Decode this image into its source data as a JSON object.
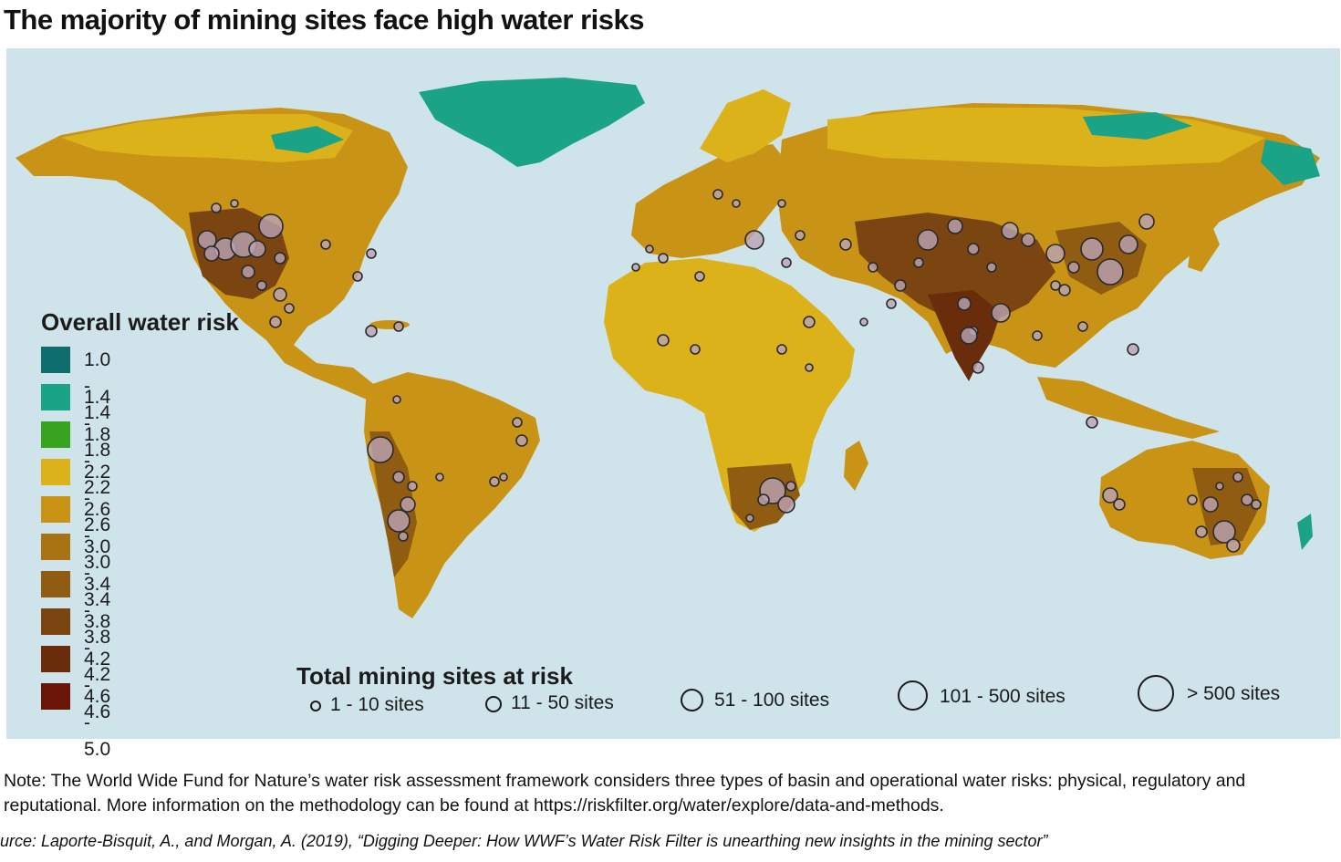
{
  "title": "The majority of mining sites face high water risks",
  "legend": {
    "title": "Overall water risk",
    "items": [
      {
        "label": "1.0 - 1.4",
        "color": "#0e6d6d"
      },
      {
        "label": "1.4 - 1.8",
        "color": "#1aa386"
      },
      {
        "label": "1.8 - 2.2",
        "color": "#36a41e"
      },
      {
        "label": "2.2 - 2.6",
        "color": "#dcb21a"
      },
      {
        "label": "2.6 - 3.0",
        "color": "#c99415"
      },
      {
        "label": "3.0 - 3.4",
        "color": "#a87413"
      },
      {
        "label": "3.4 - 3.8",
        "color": "#8f5c12"
      },
      {
        "label": "3.8 - 4.2",
        "color": "#7a4511"
      },
      {
        "label": "4.2 - 4.6",
        "color": "#6a2d0c"
      },
      {
        "label": "4.6 - 5.0",
        "color": "#6b1408"
      }
    ]
  },
  "size_legend": {
    "title": "Total mining sites at risk",
    "items": [
      {
        "label": "1 - 10 sites"
      },
      {
        "label": "11 - 50 sites"
      },
      {
        "label": "51 - 100 sites"
      },
      {
        "label": "101 - 500 sites"
      },
      {
        "label": "> 500 sites"
      }
    ]
  },
  "colors": {
    "ocean": "#cfe3ea",
    "site_fill": "#b9a3b4",
    "site_stroke": "#2a2a2a"
  },
  "note": "Note: The World Wide Fund for Nature’s water risk assessment framework considers three types of basin and operational water risks: physical, regulatory and reputational. More information on the methodology can be found at https://riskfilter.org/water/explore/data-and-methods.",
  "source": "urce: Laporte-Bisquit, A., and Morgan, A. (2019), “Digging Deeper: How WWF’s Water Risk Filter is unearthing new insights in the mining sector”"
}
